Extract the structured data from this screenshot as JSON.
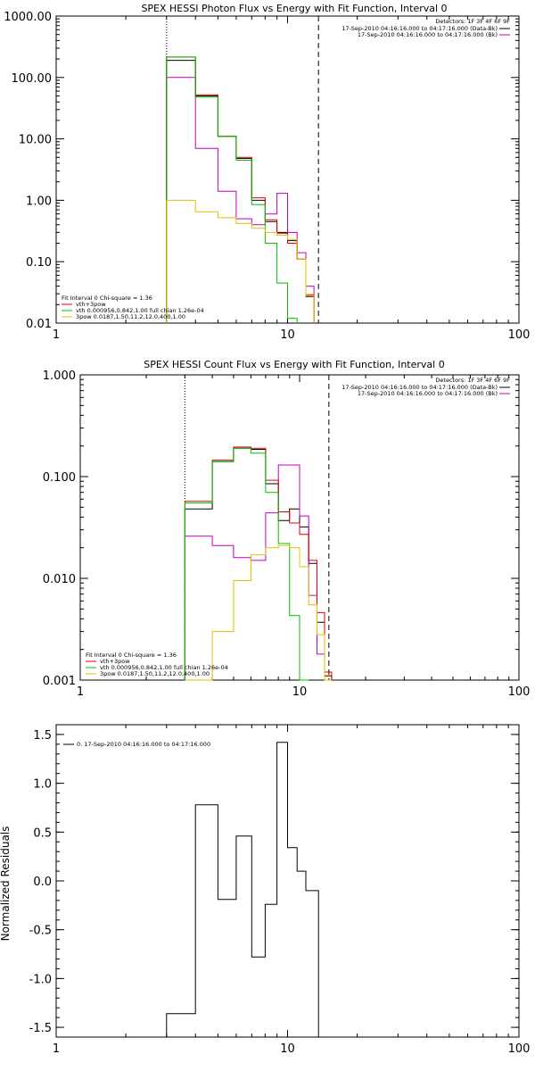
{
  "chart_data": [
    {
      "type": "line",
      "title": "SPEX HESSI Photon Flux vs Energy with Fit Function, Interval 0",
      "xlabel": "",
      "ylabel": "",
      "xscale": "log",
      "yscale": "log",
      "xlim": [
        1,
        100
      ],
      "ylim": [
        0.01,
        1000
      ],
      "x_ticks": [
        1,
        10,
        100
      ],
      "x_tick_labels": [
        "1",
        "10",
        "100"
      ],
      "y_ticks": [
        0.01,
        0.1,
        1,
        10,
        100,
        1000
      ],
      "y_tick_labels": [
        "0.01",
        "0.10",
        "1.00",
        "10.00",
        "100.00",
        "1000.00"
      ],
      "vlines": [
        {
          "x": 3.0,
          "style": "dotted"
        },
        {
          "x": 13.6,
          "style": "dashed"
        }
      ],
      "legend_top_right": {
        "header": "Detectors: 1F 3F 4F 6F 9F",
        "entries": [
          {
            "text": "17-Sep-2010 04:16:16.000 to 04:17:16.000 (Data-Bk)",
            "color": "#000000"
          },
          {
            "text": "17-Sep-2010 04:16:16.000 to 04:17:16.000 (Bk)",
            "color": "#c000c0"
          }
        ]
      },
      "legend_bottom_left": {
        "header": "Fit Interval 0   Chi-square = 1.36",
        "entries": [
          {
            "text": "vth+3pow",
            "color": "#e00000"
          },
          {
            "text": "vth 0.000956,0.842,1.00  full chian 1.26e-04",
            "color": "#00c000"
          },
          {
            "text": "3pow 0.0187,1.50,11.2,12.0,400,1.00",
            "color": "#e0c000"
          }
        ]
      },
      "edges": [
        3.0,
        4.0,
        5.0,
        6.0,
        7.0,
        8.0,
        9.0,
        10.0,
        11.0,
        12.0,
        13.0,
        14.0
      ],
      "series": [
        {
          "name": "Data-Bk",
          "color": "#000000",
          "values": [
            190,
            50,
            11,
            4.8,
            1.0,
            0.45,
            0.3,
            0.22,
            0.11,
            0.027,
            null
          ]
        },
        {
          "name": "Bk",
          "color": "#c000c0",
          "values": [
            100,
            7.0,
            1.4,
            0.5,
            0.4,
            0.6,
            1.3,
            0.3,
            0.14,
            0.04,
            null
          ]
        },
        {
          "name": "vth+3pow",
          "color": "#e00000",
          "values": [
            215,
            52,
            11,
            5.0,
            1.1,
            0.48,
            0.29,
            0.2,
            0.11,
            0.029,
            null
          ]
        },
        {
          "name": "vth",
          "color": "#00c000",
          "values": [
            215,
            48,
            11,
            4.5,
            0.85,
            0.2,
            0.045,
            0.012,
            null,
            null,
            null
          ]
        },
        {
          "name": "3pow",
          "color": "#e0c000",
          "values": [
            1.0,
            0.65,
            0.52,
            0.42,
            0.35,
            0.3,
            0.27,
            0.23,
            0.11,
            0.028,
            null
          ]
        }
      ]
    },
    {
      "type": "line",
      "title": "SPEX HESSI Count Flux vs Energy with Fit Function, Interval 0",
      "xlabel": "",
      "ylabel": "",
      "xscale": "log",
      "yscale": "log",
      "xlim": [
        1,
        100
      ],
      "ylim": [
        0.001,
        1
      ],
      "x_ticks": [
        1,
        10,
        100
      ],
      "x_tick_labels": [
        "1",
        "10",
        "100"
      ],
      "y_ticks": [
        0.001,
        0.01,
        0.1,
        1
      ],
      "y_tick_labels": [
        "0.001",
        "0.010",
        "0.100",
        "1.000"
      ],
      "vlines": [
        {
          "x": 3.0,
          "style": "dotted"
        },
        {
          "x": 13.6,
          "style": "dashed"
        }
      ],
      "legend_top_right": {
        "header": "Detectors: 1F 3F 4F 6F 9F",
        "entries": [
          {
            "text": "17-Sep-2010 04:16:16.000 to 04:17:16.000 (Data-Bk)",
            "color": "#000000"
          },
          {
            "text": "17-Sep-2010 04:16:16.000 to 04:17:16.000 (Bk)",
            "color": "#c000c0"
          }
        ]
      },
      "legend_bottom_left": {
        "header": "Fit Interval 0   Chi-square = 1.36",
        "entries": [
          {
            "text": "vth+3pow",
            "color": "#e00000"
          },
          {
            "text": "vth 0.000956,0.842,1.00  full chian 1.26e-04",
            "color": "#00c000"
          },
          {
            "text": "3pow 0.0187,1.50,11.2,12.0,400,1.00",
            "color": "#e0c000"
          }
        ]
      },
      "edges": [
        3.0,
        4.0,
        5.0,
        6.0,
        7.0,
        8.0,
        9.0,
        10.0,
        11.0,
        12.0,
        13.0,
        14.0
      ],
      "series": [
        {
          "name": "Data-Bk",
          "color": "#000000",
          "values": [
            0.048,
            0.14,
            0.19,
            0.185,
            0.085,
            0.037,
            0.048,
            0.032,
            0.014,
            0.0037,
            0.0011
          ]
        },
        {
          "name": "Bk",
          "color": "#c000c0",
          "values": [
            0.026,
            0.021,
            0.016,
            0.015,
            0.044,
            0.13,
            0.13,
            0.041,
            0.0068,
            0.0018,
            null
          ]
        },
        {
          "name": "vth+3pow",
          "color": "#e00000",
          "values": [
            0.057,
            0.145,
            0.195,
            0.19,
            0.092,
            0.045,
            0.035,
            0.027,
            0.015,
            0.0046,
            0.0012
          ]
        },
        {
          "name": "vth",
          "color": "#00c000",
          "values": [
            0.055,
            0.14,
            0.19,
            0.17,
            0.07,
            0.022,
            0.0043,
            0.0009,
            null,
            null,
            null
          ]
        },
        {
          "name": "3pow",
          "color": "#e0c000",
          "values": [
            0.0009,
            0.003,
            0.0095,
            0.017,
            0.02,
            0.021,
            0.02,
            0.013,
            0.0055,
            0.0028,
            0.0009
          ]
        }
      ]
    },
    {
      "type": "line",
      "title": "",
      "xlabel": "",
      "ylabel": "Normalized Residuals",
      "xscale": "log",
      "yscale": "linear",
      "xlim": [
        1,
        100
      ],
      "ylim": [
        -1.6,
        1.6
      ],
      "x_ticks": [
        1,
        10,
        100
      ],
      "x_tick_labels": [
        "1",
        "10",
        "100"
      ],
      "y_ticks": [
        -1.5,
        -1.0,
        -0.5,
        0.0,
        0.5,
        1.0,
        1.5
      ],
      "y_tick_labels": [
        "-1.5",
        "-1.0",
        "-0.5",
        "0.0",
        "0.5",
        "1.0",
        "1.5"
      ],
      "legend_top_left": {
        "entries": [
          {
            "text": "0. 17-Sep-2010 04:16:16.000 to 04:17:16.000",
            "color": "#000000"
          }
        ]
      },
      "edges": [
        3.0,
        4.0,
        5.0,
        6.0,
        7.0,
        8.0,
        9.0,
        10.0,
        11.0,
        12.0,
        13.6
      ],
      "series": [
        {
          "name": "0. 17-Sep-2010 04:16:16.000 to 04:17:16.000",
          "color": "#000000",
          "values": [
            -1.36,
            0.78,
            -0.19,
            0.46,
            -0.78,
            -0.24,
            1.42,
            0.34,
            0.1,
            -0.1
          ]
        }
      ]
    }
  ]
}
